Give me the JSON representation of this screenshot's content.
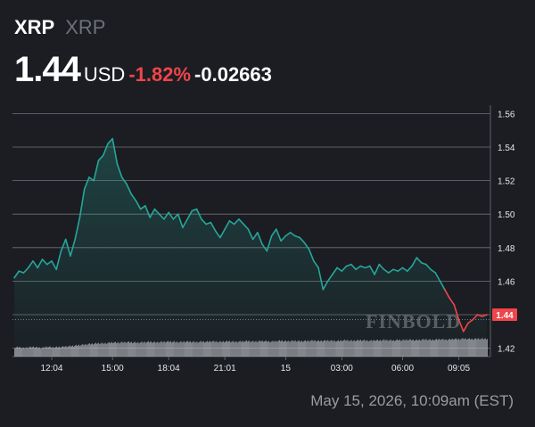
{
  "header": {
    "symbol": "XRP",
    "name": "XRP",
    "price": "1.44",
    "currency": "USD",
    "change_pct": "-1.82%",
    "change_abs": "-0.02663"
  },
  "watermark": "FINBOLD",
  "footer": {
    "timestamp": "May 15, 2026, 10:09am (EST)"
  },
  "colors": {
    "up": "#26a69a",
    "down": "#f0454a",
    "background": "#1b1d22",
    "grid": "#6f737a",
    "volume": "#c8cad0"
  },
  "chart_data": {
    "type": "area",
    "title": "",
    "xlabel": "",
    "ylabel": "",
    "x_ticks": [
      "12:04",
      "15:00",
      "18:04",
      "21:01",
      "15",
      "03:00",
      "06:00",
      "09:05"
    ],
    "y_ticks": [
      "1.56",
      "1.54",
      "1.52",
      "1.50",
      "1.48",
      "1.46",
      "1.44",
      "1.42"
    ],
    "ylim": [
      1.415,
      1.565
    ],
    "reference_price": 1.437,
    "last_price_label": "1.44",
    "grid": true,
    "series": [
      {
        "values": [
          1.462,
          1.466,
          1.465,
          1.468,
          1.472,
          1.468,
          1.473,
          1.47,
          1.472,
          1.467,
          1.478,
          1.485,
          1.475,
          1.485,
          1.498,
          1.515,
          1.522,
          1.52,
          1.532,
          1.535,
          1.542,
          1.545,
          1.53,
          1.522,
          1.518,
          1.512,
          1.508,
          1.503,
          1.505,
          1.498,
          1.503,
          1.5,
          1.497,
          1.501,
          1.497,
          1.5,
          1.492,
          1.497,
          1.502,
          1.503,
          1.497,
          1.494,
          1.495,
          1.49,
          1.486,
          1.491,
          1.496,
          1.494,
          1.497,
          1.494,
          1.491,
          1.485,
          1.489,
          1.482,
          1.478,
          1.487,
          1.491,
          1.484,
          1.487,
          1.489,
          1.487,
          1.486,
          1.483,
          1.479,
          1.472,
          1.468,
          1.455,
          1.46,
          1.464,
          1.468,
          1.466,
          1.469,
          1.47,
          1.467,
          1.469,
          1.468,
          1.469,
          1.464,
          1.47,
          1.467,
          1.465,
          1.467,
          1.466,
          1.468,
          1.466,
          1.469,
          1.474,
          1.471,
          1.47,
          1.467,
          1.465,
          1.46,
          1.455,
          1.45,
          1.446,
          1.437,
          1.43,
          1.435,
          1.437,
          1.44,
          1.439,
          1.44
        ],
        "volumes": [
          0.3,
          0.32,
          0.28,
          0.31,
          0.33,
          0.3,
          0.29,
          0.34,
          0.31,
          0.32,
          0.33,
          0.35,
          0.36,
          0.38,
          0.4,
          0.42,
          0.44,
          0.45,
          0.47,
          0.46,
          0.48,
          0.5,
          0.49,
          0.5,
          0.51,
          0.5,
          0.49,
          0.5,
          0.51,
          0.52,
          0.5,
          0.51,
          0.52,
          0.53,
          0.52,
          0.51,
          0.52,
          0.53,
          0.52,
          0.51,
          0.53,
          0.52,
          0.54,
          0.53,
          0.52,
          0.53,
          0.54,
          0.52,
          0.53,
          0.54,
          0.55,
          0.53,
          0.54,
          0.55,
          0.54,
          0.53,
          0.55,
          0.56,
          0.54,
          0.55,
          0.56,
          0.54,
          0.55,
          0.56,
          0.57,
          0.55,
          0.56,
          0.57,
          0.56,
          0.55,
          0.57,
          0.58,
          0.56,
          0.57,
          0.58,
          0.57,
          0.56,
          0.58,
          0.57,
          0.59,
          0.58,
          0.57,
          0.59,
          0.58,
          0.6,
          0.59,
          0.58,
          0.6,
          0.61,
          0.59,
          0.6,
          0.62,
          0.6,
          0.61,
          0.63,
          0.62,
          0.64,
          0.63,
          0.62,
          0.64,
          0.63,
          0.64
        ]
      }
    ]
  }
}
